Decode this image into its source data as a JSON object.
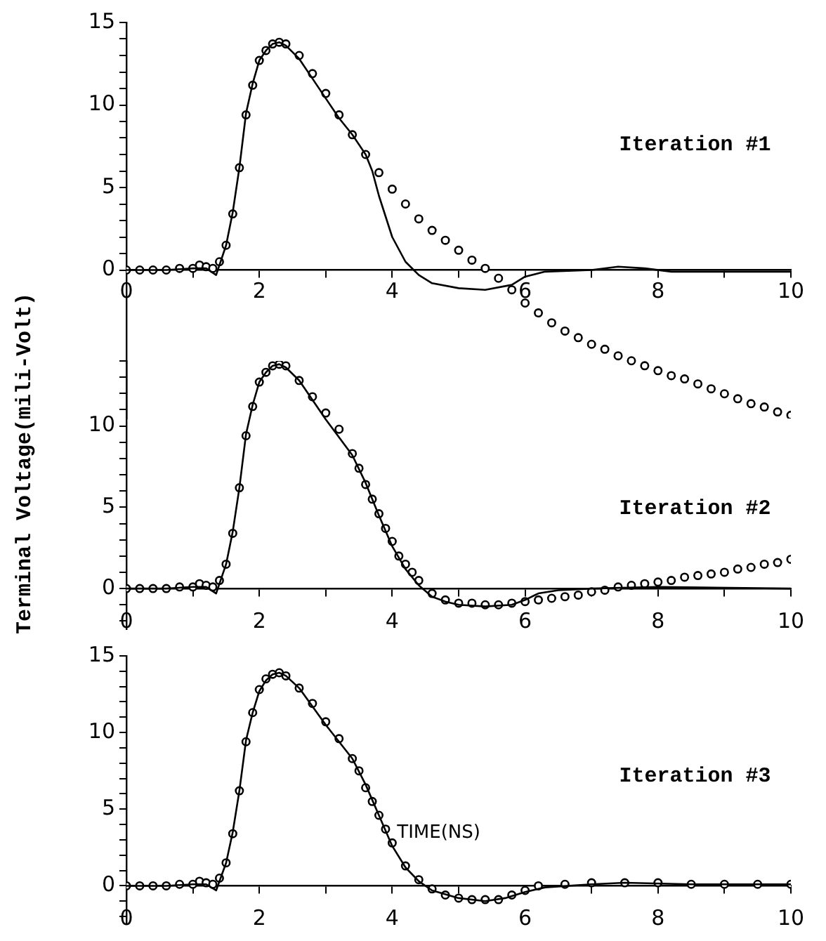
{
  "chart_data": [
    {
      "type": "line",
      "annotations": [
        "Iteration #1"
      ],
      "xlim": [
        0,
        10
      ],
      "ylim": [
        -9,
        15
      ],
      "xticks": [
        0,
        {
          "value": 1,
          "label": null
        },
        2,
        {
          "value": 3,
          "label": null
        },
        4,
        {
          "value": 5,
          "label": null
        },
        6,
        {
          "value": 7,
          "label": null
        },
        8,
        {
          "value": 9,
          "label": null
        },
        10
      ],
      "yticks": [
        0,
        {
          "value": 1,
          "label": null
        },
        {
          "value": 2,
          "label": null
        },
        {
          "value": 3,
          "label": null
        },
        {
          "value": 4,
          "label": null
        },
        5,
        {
          "value": 6,
          "label": null
        },
        {
          "value": 7,
          "label": null
        },
        {
          "value": 8,
          "label": null
        },
        {
          "value": 9,
          "label": null
        },
        10,
        {
          "value": 11,
          "label": null
        },
        {
          "value": 12,
          "label": null
        },
        {
          "value": 13,
          "label": null
        },
        {
          "value": 14,
          "label": null
        },
        15
      ],
      "grid": false,
      "legend": false,
      "series": [
        {
          "type": "line",
          "color": "#000000",
          "marker": "none",
          "x": [
            0,
            0.6,
            1.0,
            1.2,
            1.35,
            1.5,
            1.6,
            1.7,
            1.8,
            1.9,
            2.0,
            2.1,
            2.2,
            2.3,
            2.4,
            2.6,
            2.8,
            3.0,
            3.2,
            3.4,
            3.6,
            3.7,
            3.8,
            4.0,
            4.2,
            4.4,
            4.6,
            5.0,
            5.4,
            5.8,
            6.0,
            6.3,
            7.0,
            7.4,
            7.8,
            8.2,
            10
          ],
          "values": [
            0,
            0,
            0.1,
            0.1,
            -0.3,
            1.5,
            3.5,
            6.2,
            9.5,
            11.3,
            12.7,
            13.3,
            13.7,
            13.8,
            13.6,
            12.8,
            11.6,
            10.4,
            9.2,
            8.2,
            7.0,
            6.0,
            4.5,
            2.0,
            0.5,
            -0.3,
            -0.8,
            -1.1,
            -1.2,
            -0.9,
            -0.4,
            -0.1,
            0,
            0.2,
            0.1,
            -0.1,
            -0.1
          ]
        },
        {
          "type": "scatter",
          "color": "#000000",
          "marker": "circle",
          "x": [
            0,
            0.2,
            0.4,
            0.6,
            0.8,
            1.0,
            1.1,
            1.2,
            1.3,
            1.4,
            1.5,
            1.6,
            1.7,
            1.8,
            1.9,
            2.0,
            2.1,
            2.2,
            2.3,
            2.4,
            2.6,
            2.8,
            3.0,
            3.2,
            3.4,
            3.6,
            3.8,
            4.0,
            4.2,
            4.4,
            4.6,
            4.8,
            5.0,
            5.2,
            5.4,
            5.6,
            5.8,
            6.0,
            6.2,
            6.4,
            6.6,
            6.8,
            7.0,
            7.2,
            7.4,
            7.6,
            7.8,
            8.0,
            8.2,
            8.4,
            8.6,
            8.8,
            9.0,
            9.2,
            9.4,
            9.6,
            9.8,
            10
          ],
          "values": [
            0,
            0,
            0,
            0,
            0.1,
            0.1,
            0.3,
            0.2,
            0.1,
            0.5,
            1.5,
            3.4,
            6.2,
            9.4,
            11.2,
            12.7,
            13.3,
            13.7,
            13.8,
            13.7,
            13.0,
            11.9,
            10.7,
            9.4,
            8.2,
            7.0,
            5.9,
            4.9,
            4.0,
            3.1,
            2.4,
            1.8,
            1.2,
            0.6,
            0.1,
            -0.5,
            -1.2,
            -2.0,
            -2.6,
            -3.2,
            -3.7,
            -4.1,
            -4.5,
            -4.8,
            -5.2,
            -5.5,
            -5.8,
            -6.1,
            -6.4,
            -6.6,
            -6.9,
            -7.2,
            -7.5,
            -7.8,
            -8.1,
            -8.3,
            -8.6,
            -8.8
          ]
        }
      ]
    },
    {
      "type": "line",
      "ylabel": "Terminal Voltage(mili-Volt)",
      "annotations": [
        "Iteration #2"
      ],
      "xlim": [
        0,
        10
      ],
      "ylim": [
        -2.5,
        14
      ],
      "xticks": [
        0,
        {
          "value": 1,
          "label": null
        },
        2,
        {
          "value": 3,
          "label": null
        },
        4,
        {
          "value": 5,
          "label": null
        },
        6,
        {
          "value": 7,
          "label": null
        },
        8,
        {
          "value": 9,
          "label": null
        },
        10
      ],
      "yticks": [
        {
          "value": -2,
          "label": null
        },
        {
          "value": -1,
          "label": null
        },
        0,
        {
          "value": 1,
          "label": null
        },
        {
          "value": 2,
          "label": null
        },
        {
          "value": 3,
          "label": null
        },
        {
          "value": 4,
          "label": null
        },
        5,
        {
          "value": 6,
          "label": null
        },
        {
          "value": 7,
          "label": null
        },
        {
          "value": 8,
          "label": null
        },
        {
          "value": 9,
          "label": null
        },
        10,
        {
          "value": 11,
          "label": null
        },
        {
          "value": 12,
          "label": null
        },
        {
          "value": 13,
          "label": null
        },
        {
          "value": 14,
          "label": null
        }
      ],
      "grid": false,
      "legend": false,
      "series": [
        {
          "type": "line",
          "color": "#000000",
          "marker": "none",
          "x": [
            0,
            0.6,
            1.0,
            1.2,
            1.35,
            1.5,
            1.6,
            1.7,
            1.8,
            1.9,
            2.0,
            2.1,
            2.2,
            2.3,
            2.4,
            2.6,
            2.8,
            3.0,
            3.2,
            3.4,
            3.6,
            3.8,
            4.0,
            4.2,
            4.4,
            4.6,
            4.8,
            5.0,
            5.4,
            5.8,
            6.0,
            6.2,
            6.5,
            7.0,
            8.0,
            10
          ],
          "values": [
            0,
            0,
            0.1,
            0.1,
            -0.3,
            1.5,
            3.5,
            6.2,
            9.5,
            11.3,
            12.7,
            13.3,
            13.7,
            13.8,
            13.6,
            12.8,
            11.6,
            10.4,
            9.3,
            8.2,
            6.5,
            4.5,
            2.6,
            1.2,
            0.2,
            -0.5,
            -0.8,
            -1.0,
            -1.1,
            -1.0,
            -0.7,
            -0.3,
            -0.1,
            0,
            0.1,
            0
          ]
        },
        {
          "type": "scatter",
          "color": "#000000",
          "marker": "circle",
          "x": [
            0,
            0.2,
            0.4,
            0.6,
            0.8,
            1.0,
            1.1,
            1.2,
            1.3,
            1.4,
            1.5,
            1.6,
            1.7,
            1.8,
            1.9,
            2.0,
            2.1,
            2.2,
            2.3,
            2.4,
            2.6,
            2.8,
            3.0,
            3.2,
            3.4,
            3.5,
            3.6,
            3.7,
            3.8,
            3.9,
            4.0,
            4.1,
            4.2,
            4.3,
            4.4,
            4.6,
            4.8,
            5.0,
            5.2,
            5.4,
            5.6,
            5.8,
            6.0,
            6.2,
            6.4,
            6.6,
            6.8,
            7.0,
            7.2,
            7.4,
            7.6,
            7.8,
            8.0,
            8.2,
            8.4,
            8.6,
            8.8,
            9.0,
            9.2,
            9.4,
            9.6,
            9.8,
            10
          ],
          "values": [
            0,
            0,
            0,
            0,
            0.1,
            0.1,
            0.3,
            0.2,
            0.1,
            0.5,
            1.5,
            3.4,
            6.2,
            9.4,
            11.2,
            12.7,
            13.3,
            13.7,
            13.8,
            13.7,
            12.8,
            11.8,
            10.8,
            9.8,
            8.3,
            7.4,
            6.4,
            5.5,
            4.6,
            3.7,
            2.9,
            2.0,
            1.5,
            1.0,
            0.5,
            -0.3,
            -0.7,
            -0.9,
            -0.9,
            -1.0,
            -1.0,
            -0.9,
            -0.8,
            -0.7,
            -0.6,
            -0.5,
            -0.4,
            -0.2,
            -0.1,
            0.1,
            0.2,
            0.3,
            0.4,
            0.5,
            0.7,
            0.8,
            0.9,
            1.0,
            1.2,
            1.3,
            1.5,
            1.6,
            1.8
          ]
        }
      ]
    },
    {
      "type": "line",
      "xlabel": "TIME(NS)",
      "annotations": [
        "Iteration #3"
      ],
      "xlim": [
        0,
        10
      ],
      "ylim": [
        -2.5,
        15
      ],
      "xticks": [
        0,
        {
          "value": 1,
          "label": null
        },
        2,
        {
          "value": 3,
          "label": null
        },
        4,
        {
          "value": 5,
          "label": null
        },
        6,
        {
          "value": 7,
          "label": null
        },
        8,
        {
          "value": 9,
          "label": null
        },
        10
      ],
      "yticks": [
        {
          "value": -2,
          "label": null
        },
        {
          "value": -1,
          "label": null
        },
        0,
        {
          "value": 1,
          "label": null
        },
        {
          "value": 2,
          "label": null
        },
        {
          "value": 3,
          "label": null
        },
        {
          "value": 4,
          "label": null
        },
        5,
        {
          "value": 6,
          "label": null
        },
        {
          "value": 7,
          "label": null
        },
        {
          "value": 8,
          "label": null
        },
        {
          "value": 9,
          "label": null
        },
        10,
        {
          "value": 11,
          "label": null
        },
        {
          "value": 12,
          "label": null
        },
        {
          "value": 13,
          "label": null
        },
        {
          "value": 14,
          "label": null
        },
        15
      ],
      "grid": false,
      "legend": false,
      "series": [
        {
          "type": "line",
          "color": "#000000",
          "marker": "none",
          "x": [
            0,
            0.6,
            1.0,
            1.2,
            1.35,
            1.5,
            1.6,
            1.7,
            1.8,
            1.9,
            2.0,
            2.1,
            2.2,
            2.3,
            2.4,
            2.6,
            2.8,
            3.0,
            3.2,
            3.4,
            3.6,
            3.8,
            4.0,
            4.2,
            4.4,
            4.6,
            5.0,
            5.4,
            5.7,
            6.0,
            6.3,
            7.0,
            7.5,
            8.5,
            10
          ],
          "values": [
            0,
            0,
            0.1,
            0.1,
            -0.3,
            1.5,
            3.5,
            6.2,
            9.5,
            11.3,
            12.7,
            13.4,
            13.8,
            13.9,
            13.7,
            12.9,
            11.7,
            10.5,
            9.4,
            8.3,
            6.6,
            4.6,
            2.6,
            1.2,
            0.3,
            -0.3,
            -0.8,
            -1.0,
            -0.8,
            -0.4,
            -0.1,
            0.1,
            0.2,
            0.1,
            0.1
          ]
        },
        {
          "type": "scatter",
          "color": "#000000",
          "marker": "circle",
          "x": [
            0,
            0.2,
            0.4,
            0.6,
            0.8,
            1.0,
            1.1,
            1.2,
            1.3,
            1.4,
            1.5,
            1.6,
            1.7,
            1.8,
            1.9,
            2.0,
            2.1,
            2.2,
            2.3,
            2.4,
            2.6,
            2.8,
            3.0,
            3.2,
            3.4,
            3.5,
            3.6,
            3.7,
            3.8,
            3.9,
            4.0,
            4.2,
            4.4,
            4.6,
            4.8,
            5.0,
            5.2,
            5.4,
            5.6,
            5.8,
            6.0,
            6.2,
            6.6,
            7.0,
            7.5,
            8.0,
            8.5,
            9.0,
            9.5,
            10
          ],
          "values": [
            0,
            0,
            0,
            0,
            0.1,
            0.1,
            0.3,
            0.2,
            0.1,
            0.5,
            1.5,
            3.4,
            6.2,
            9.4,
            11.3,
            12.8,
            13.5,
            13.8,
            13.9,
            13.7,
            12.9,
            11.9,
            10.7,
            9.6,
            8.3,
            7.5,
            6.4,
            5.5,
            4.6,
            3.7,
            2.8,
            1.3,
            0.4,
            -0.2,
            -0.6,
            -0.8,
            -0.9,
            -0.9,
            -0.9,
            -0.6,
            -0.3,
            0,
            0.1,
            0.2,
            0.2,
            0.2,
            0.1,
            0.1,
            0.1,
            0.1
          ]
        }
      ]
    }
  ]
}
